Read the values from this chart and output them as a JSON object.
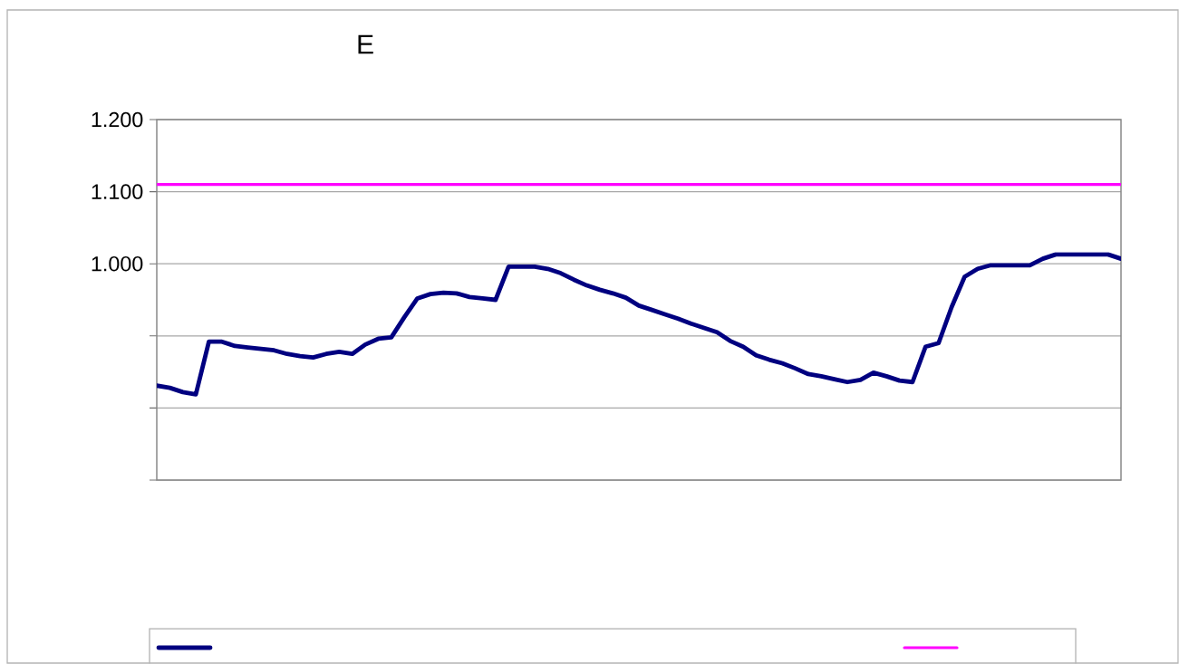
{
  "chart_data": {
    "type": "line",
    "title": "E",
    "categories": [
      null,
      null,
      null,
      null,
      null,
      null,
      null,
      null,
      null,
      null,
      null,
      null,
      null,
      null,
      null,
      null,
      null,
      null,
      null,
      null,
      null,
      null,
      null,
      null,
      null,
      null,
      null,
      null,
      null,
      null,
      null,
      null,
      null,
      null,
      null,
      null,
      null,
      null,
      null,
      null,
      null,
      null,
      null,
      null,
      null,
      null,
      null,
      null,
      null,
      null,
      null,
      null,
      null,
      null,
      null,
      null,
      null,
      null,
      null,
      null,
      null,
      null,
      null,
      null,
      null,
      null,
      null,
      null,
      null,
      null,
      null,
      null,
      null,
      null,
      null
    ],
    "series": [
      {
        "color": "#000080",
        "values": [
          0.831,
          0.828,
          0.822,
          0.819,
          0.892,
          0.892,
          0.886,
          0.884,
          0.882,
          0.88,
          0.875,
          0.872,
          0.87,
          0.875,
          0.878,
          0.875,
          0.888,
          0.896,
          0.898,
          0.926,
          0.952,
          0.958,
          0.96,
          0.959,
          0.954,
          0.952,
          0.95,
          0.996,
          0.996,
          0.996,
          0.993,
          0.987,
          0.978,
          0.97,
          0.964,
          0.959,
          0.953,
          0.942,
          0.936,
          0.93,
          0.924,
          0.917,
          0.911,
          0.905,
          0.893,
          0.885,
          0.873,
          0.867,
          0.862,
          0.855,
          0.847,
          0.844,
          0.84,
          0.836,
          0.839,
          0.849,
          0.844,
          0.838,
          0.836,
          0.885,
          0.89,
          0.94,
          0.982,
          0.993,
          0.998,
          0.998,
          0.998,
          0.998,
          1.007,
          1.013,
          1.013,
          1.013,
          1.013,
          1.013,
          1.007
        ]
      },
      {
        "color": "#ff00ff",
        "values": [
          1.11,
          1.11,
          1.11,
          1.11,
          1.11,
          1.11,
          1.11,
          1.11,
          1.11,
          1.11,
          1.11,
          1.11,
          1.11,
          1.11,
          1.11,
          1.11,
          1.11,
          1.11,
          1.11,
          1.11,
          1.11,
          1.11,
          1.11,
          1.11,
          1.11,
          1.11,
          1.11,
          1.11,
          1.11,
          1.11,
          1.11,
          1.11,
          1.11,
          1.11,
          1.11,
          1.11,
          1.11,
          1.11,
          1.11,
          1.11,
          1.11,
          1.11,
          1.11,
          1.11,
          1.11,
          1.11,
          1.11,
          1.11,
          1.11,
          1.11,
          1.11,
          1.11,
          1.11,
          1.11,
          1.11,
          1.11,
          1.11,
          1.11,
          1.11,
          1.11,
          1.11,
          1.11,
          1.11,
          1.11,
          1.11,
          1.11,
          1.11,
          1.11,
          1.11,
          1.11,
          1.11,
          1.11,
          1.11,
          1.11,
          1.11
        ]
      }
    ],
    "ylim": [
      0.7,
      1.2
    ],
    "yticks": [
      {
        "value": 0.7,
        "label": null
      },
      {
        "value": 0.8,
        "label": null
      },
      {
        "value": 0.9,
        "label": null
      },
      {
        "value": 1.0,
        "label": "1.000"
      },
      {
        "value": 1.1,
        "label": "1.100"
      },
      {
        "value": 1.2,
        "label": "1.200"
      }
    ],
    "grid": "y"
  }
}
